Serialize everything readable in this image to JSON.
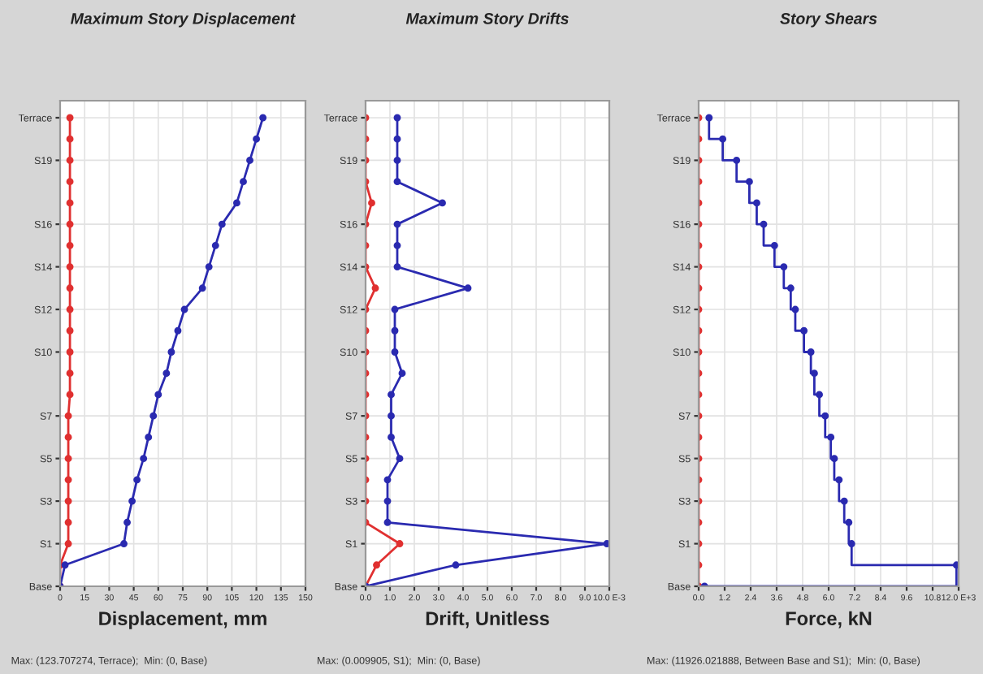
{
  "chart_data": [
    {
      "type": "line",
      "orientation": "horizontal",
      "title": "Maximum Story Displacement",
      "xlabel": "Displacement, mm",
      "xlim": [
        0,
        150
      ],
      "xticks": [
        0,
        15,
        30,
        45,
        60,
        75,
        90,
        105,
        120,
        135,
        150
      ],
      "categories": [
        "Terrace",
        null,
        "S19",
        null,
        null,
        "S16",
        null,
        "S14",
        null,
        "S12",
        null,
        "S10",
        null,
        null,
        "S7",
        null,
        "S5",
        null,
        "S3",
        null,
        "S1",
        null,
        "Base"
      ],
      "grid": true,
      "marker": "circle",
      "line_style": "solid",
      "series": [
        {
          "color": "#e03030",
          "values": [
            6,
            6,
            6,
            6,
            6,
            6,
            6,
            6,
            6,
            6,
            6,
            6,
            6,
            6,
            5,
            5,
            5,
            5,
            5,
            5,
            5,
            0,
            0
          ]
        },
        {
          "color": "#2a2ab0",
          "values": [
            124,
            120,
            116,
            112,
            108,
            99,
            95,
            91,
            87,
            76,
            72,
            68,
            65,
            60,
            57,
            54,
            51,
            47,
            44,
            41,
            39,
            3,
            0
          ]
        }
      ],
      "annotations": [
        "Max: (123.707274, Terrace);  Min: (0, Base)"
      ]
    },
    {
      "type": "line",
      "orientation": "horizontal",
      "title": "Maximum Story Drifts",
      "xlabel": "Drift, Unitless",
      "xlim": [
        0,
        10
      ],
      "xticks": [
        {
          "value": 0,
          "label": "0.0"
        },
        {
          "value": 1,
          "label": "1.0"
        },
        {
          "value": 2,
          "label": "2.0"
        },
        {
          "value": 3,
          "label": "3.0"
        },
        {
          "value": 4,
          "label": "4.0"
        },
        {
          "value": 5,
          "label": "5.0"
        },
        {
          "value": 6,
          "label": "6.0"
        },
        {
          "value": 7,
          "label": "7.0"
        },
        {
          "value": 8,
          "label": "8.0"
        },
        {
          "value": 9,
          "label": "9.0"
        },
        {
          "value": 10,
          "label": "10.0 E-3"
        }
      ],
      "categories": [
        "Terrace",
        null,
        "S19",
        null,
        null,
        "S16",
        null,
        "S14",
        null,
        "S12",
        null,
        "S10",
        null,
        null,
        "S7",
        null,
        "S5",
        null,
        "S3",
        null,
        "S1",
        null,
        "Base"
      ],
      "grid": true,
      "marker": "circle",
      "line_style": "solid",
      "series": [
        {
          "color": "#e03030",
          "values": [
            0,
            0,
            0,
            0,
            0.25,
            0,
            0,
            0,
            0.4,
            0,
            0,
            0,
            0,
            0,
            0,
            0,
            0,
            0,
            0,
            0,
            1.4,
            0.45,
            0
          ]
        },
        {
          "color": "#2a2ab0",
          "values": [
            1.3,
            1.3,
            1.3,
            1.3,
            3.15,
            1.3,
            1.3,
            1.3,
            4.2,
            1.2,
            1.2,
            1.2,
            1.5,
            1.05,
            1.05,
            1.05,
            1.4,
            0.9,
            0.9,
            0.9,
            9.9,
            3.7,
            0
          ]
        }
      ],
      "annotations": [
        "Max: (0.009905, S1);  Min: (0, Base)"
      ]
    },
    {
      "type": "step",
      "orientation": "horizontal",
      "title": "Story Shears",
      "xlabel": "Force, kN",
      "xlim": [
        0,
        12
      ],
      "xticks": [
        {
          "value": 0,
          "label": "0.0"
        },
        {
          "value": 1.2,
          "label": "1.2"
        },
        {
          "value": 2.4,
          "label": "2.4"
        },
        {
          "value": 3.6,
          "label": "3.6"
        },
        {
          "value": 4.8,
          "label": "4.8"
        },
        {
          "value": 6.0,
          "label": "6.0"
        },
        {
          "value": 7.2,
          "label": "7.2"
        },
        {
          "value": 8.4,
          "label": "8.4"
        },
        {
          "value": 9.6,
          "label": "9.6"
        },
        {
          "value": 10.8,
          "label": "10.8"
        },
        {
          "value": 12,
          "label": "12.0 E+3"
        }
      ],
      "categories": [
        "Terrace",
        null,
        "S19",
        null,
        null,
        "S16",
        null,
        "S14",
        null,
        "S12",
        null,
        "S10",
        null,
        null,
        "S7",
        null,
        "S5",
        null,
        "S3",
        null,
        "S1",
        null,
        "Base"
      ],
      "grid": true,
      "marker": "circle",
      "line_style": "solid",
      "series": [
        {
          "color": "#e03030",
          "type": "line",
          "values": [
            0,
            0,
            0,
            0,
            0,
            0,
            0,
            0,
            0,
            0,
            0,
            0,
            0,
            0,
            0,
            0,
            0,
            0,
            0,
            0,
            0,
            0,
            0
          ]
        },
        {
          "color": "#2a2ab0",
          "values": [
            0.48,
            1.11,
            1.75,
            2.34,
            2.68,
            3.0,
            3.5,
            3.93,
            4.25,
            4.46,
            4.86,
            5.18,
            5.34,
            5.57,
            5.84,
            6.1,
            6.26,
            6.48,
            6.72,
            6.93,
            7.06,
            11.9,
            0.27
          ]
        }
      ],
      "annotations": [
        "Max: (11926.021888, Between Base and S1);  Min: (0, Base)"
      ]
    }
  ]
}
